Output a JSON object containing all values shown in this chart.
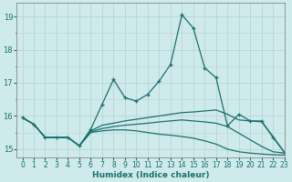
{
  "xlabel": "Humidex (Indice chaleur)",
  "ylabel": "",
  "background_color": "#ceeaea",
  "grid_color": "#b8d4d4",
  "line_color": "#1a7070",
  "xlim": [
    -0.5,
    23
  ],
  "ylim": [
    14.75,
    19.4
  ],
  "yticks": [
    15,
    16,
    17,
    18,
    19
  ],
  "xticks": [
    0,
    1,
    2,
    3,
    4,
    5,
    6,
    7,
    8,
    9,
    10,
    11,
    12,
    13,
    14,
    15,
    16,
    17,
    18,
    19,
    20,
    21,
    22,
    23
  ],
  "series": [
    {
      "y": [
        15.95,
        15.75,
        15.35,
        15.35,
        15.35,
        15.1,
        15.6,
        16.35,
        17.1,
        16.55,
        16.45,
        16.65,
        17.05,
        17.55,
        19.05,
        18.65,
        17.45,
        17.15,
        15.7,
        16.05,
        15.85,
        15.85,
        15.35,
        14.9
      ],
      "style": "dotted_marker",
      "linewidth": 0.9
    },
    {
      "y": [
        15.95,
        15.75,
        15.35,
        15.35,
        15.35,
        15.1,
        15.55,
        15.72,
        15.78,
        15.85,
        15.9,
        15.95,
        16.0,
        16.05,
        16.1,
        16.12,
        16.15,
        16.18,
        16.05,
        15.88,
        15.85,
        15.82,
        15.38,
        14.9
      ],
      "style": "solid",
      "linewidth": 0.9
    },
    {
      "y": [
        15.95,
        15.75,
        15.35,
        15.35,
        15.35,
        15.1,
        15.52,
        15.62,
        15.68,
        15.72,
        15.75,
        15.78,
        15.82,
        15.85,
        15.88,
        15.85,
        15.82,
        15.78,
        15.68,
        15.48,
        15.28,
        15.08,
        14.92,
        14.88
      ],
      "style": "solid",
      "linewidth": 0.9
    },
    {
      "y": [
        15.95,
        15.75,
        15.35,
        15.35,
        15.35,
        15.1,
        15.5,
        15.55,
        15.58,
        15.58,
        15.55,
        15.5,
        15.45,
        15.42,
        15.38,
        15.33,
        15.25,
        15.15,
        15.0,
        14.92,
        14.88,
        14.85,
        14.83,
        14.82
      ],
      "style": "solid",
      "linewidth": 0.9
    }
  ]
}
